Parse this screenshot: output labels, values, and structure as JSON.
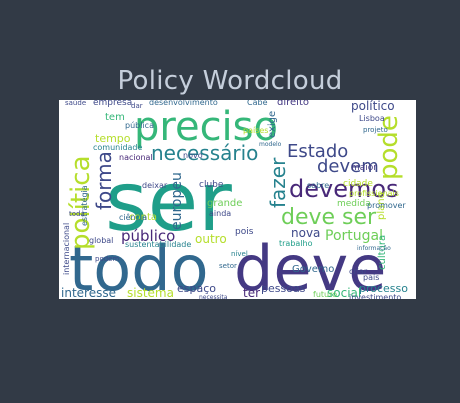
{
  "title": "Policy Wordcloud",
  "palette": {
    "background": "#323a46",
    "title_text": "#c5cedb",
    "cloud_background": "#ffffff"
  },
  "words": [
    {
      "text": "ser",
      "color": "#1f9e89"
    },
    {
      "text": "todo",
      "color": "#31688e"
    },
    {
      "text": "deve",
      "color": "#443983"
    },
    {
      "text": "preciso",
      "color": "#35b779"
    },
    {
      "text": "política",
      "color": "#b5de2b"
    },
    {
      "text": "necessário",
      "color": "#26828e"
    },
    {
      "text": "pode",
      "color": "#b5de2b"
    },
    {
      "text": "Estado",
      "color": "#3e4989"
    },
    {
      "text": "devemos",
      "color": "#482878"
    },
    {
      "text": "devem",
      "color": "#3e4989"
    },
    {
      "text": "deve ser",
      "color": "#6ece58"
    },
    {
      "text": "fazer",
      "color": "#26828e"
    },
    {
      "text": "forma",
      "color": "#3e4989"
    },
    {
      "text": "europeu",
      "color": "#31688e"
    },
    {
      "text": "político",
      "color": "#3e4989"
    },
    {
      "text": "Portugal",
      "color": "#6ece58"
    },
    {
      "text": "público",
      "color": "#482878"
    },
    {
      "text": "interesse",
      "color": "#31688e"
    },
    {
      "text": "sistema",
      "color": "#b5de2b"
    },
    {
      "text": "social",
      "color": "#35b779"
    },
    {
      "text": "processo",
      "color": "#26828e"
    },
    {
      "text": "espaço",
      "color": "#3e4989"
    },
    {
      "text": "ter",
      "color": "#482878"
    },
    {
      "text": "pessoas",
      "color": "#3e4989"
    },
    {
      "text": "Governo",
      "color": "#31688e"
    },
    {
      "text": "outro",
      "color": "#b5de2b"
    },
    {
      "text": "nova",
      "color": "#3e4989"
    },
    {
      "text": "tempo",
      "color": "#b5de2b"
    },
    {
      "text": "tem",
      "color": "#35b779"
    },
    {
      "text": "empresa",
      "color": "#3e4989"
    },
    {
      "text": "desenvolvimento",
      "color": "#31688e"
    },
    {
      "text": "direito",
      "color": "#443983"
    },
    {
      "text": "comunidade",
      "color": "#26828e"
    },
    {
      "text": "nacional",
      "color": "#482878"
    },
    {
      "text": "clube",
      "color": "#3e4989"
    },
    {
      "text": "grande",
      "color": "#6ece58"
    },
    {
      "text": "medida",
      "color": "#6ece58"
    },
    {
      "text": "maior",
      "color": "#443983"
    },
    {
      "text": "sobre",
      "color": "#31688e"
    },
    {
      "text": "cidade",
      "color": "#b5de2b"
    },
    {
      "text": "países",
      "color": "#b5de2b"
    },
    {
      "text": "exige",
      "color": "#31688e"
    },
    {
      "text": "pública",
      "color": "#31688e"
    },
    {
      "text": "internacional",
      "color": "#3e4989"
    },
    {
      "text": "sustentabilidade",
      "color": "#26828e"
    },
    {
      "text": "investimento",
      "color": "#3e4989"
    },
    {
      "text": "plano",
      "color": "#b5de2b"
    },
    {
      "text": "trabalho",
      "color": "#1f9e89"
    },
    {
      "text": "pois",
      "color": "#3e4989"
    },
    {
      "text": "conta",
      "color": "#b5de2b"
    },
    {
      "text": "estratégia",
      "color": "#31688e"
    },
    {
      "text": "global",
      "color": "#3e4989"
    },
    {
      "text": "ciência",
      "color": "#31688e"
    },
    {
      "text": "deixar",
      "color": "#3e4989"
    },
    {
      "text": "ainda",
      "color": "#3e4989"
    },
    {
      "text": "novo",
      "color": "#3e4989"
    },
    {
      "text": "profissionais",
      "color": "#b5de2b"
    },
    {
      "text": "Lisboa",
      "color": "#3e4989"
    },
    {
      "text": "promover",
      "color": "#31688e"
    },
    {
      "text": "cultura",
      "color": "#35b779"
    },
    {
      "text": "país",
      "color": "#3e4989"
    },
    {
      "text": "futuro",
      "color": "#6ece58"
    },
    {
      "text": "criar",
      "color": "#3e4989"
    },
    {
      "text": "Cabe",
      "color": "#31688e"
    },
    {
      "text": "saúde",
      "color": "#3e4989"
    },
    {
      "text": "dar",
      "color": "#3e4989"
    },
    {
      "text": "projeto",
      "color": "#31688e"
    },
    {
      "text": "toda",
      "color": "#3e4989"
    },
    {
      "text": "podem",
      "color": "#3e4989"
    },
    {
      "text": "necessita",
      "color": "#3e4989"
    },
    {
      "text": "informação",
      "color": "#31688e"
    },
    {
      "text": "modelo",
      "color": "#31688e"
    },
    {
      "text": "nível",
      "color": "#26828e"
    },
    {
      "text": "setor",
      "color": "#31688e"
    }
  ]
}
